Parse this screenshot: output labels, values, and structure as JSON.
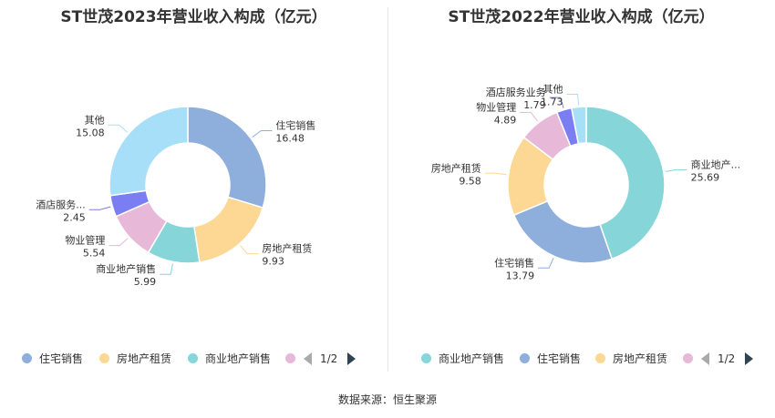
{
  "chart_data": [
    {
      "type": "pie",
      "title": "ST世茂2023年营业收入构成（亿元）",
      "slices": [
        {
          "name": "住宅销售",
          "label": "住宅销售",
          "value": 16.48,
          "color": "#8eaedb"
        },
        {
          "name": "房地产租赁",
          "label": "房地产租赁",
          "value": 9.93,
          "color": "#fdd794"
        },
        {
          "name": "商业地产销售",
          "label": "商业地产销售",
          "value": 5.99,
          "color": "#86d6d9"
        },
        {
          "name": "物业管理",
          "label": "物业管理",
          "value": 5.54,
          "color": "#e8b8d8"
        },
        {
          "name": "酒店服务业务",
          "label": "酒店服务...",
          "value": 2.45,
          "color": "#7b7ef2"
        },
        {
          "name": "其他",
          "label": "其他",
          "value": 15.08,
          "color": "#a7dff9"
        }
      ],
      "legend": {
        "items": [
          "住宅销售",
          "房地产租赁",
          "商业地产销售"
        ],
        "page": "1/2",
        "placement": "bottom"
      }
    },
    {
      "type": "pie",
      "title": "ST世茂2022年营业收入构成（亿元）",
      "slices": [
        {
          "name": "商业地产销售",
          "label": "商业地产...",
          "value": 25.69,
          "color": "#86d6d9"
        },
        {
          "name": "住宅销售",
          "label": "住宅销售",
          "value": 13.79,
          "color": "#8eaedb"
        },
        {
          "name": "房地产租赁",
          "label": "房地产租赁",
          "value": 9.58,
          "color": "#fdd794"
        },
        {
          "name": "物业管理",
          "label": "物业管理",
          "value": 4.89,
          "color": "#e8b8d8"
        },
        {
          "name": "酒店服务业务",
          "label": "酒店服务业务",
          "value": 1.79,
          "color": "#7b7ef2"
        },
        {
          "name": "其他",
          "label": "其他",
          "value": 1.73,
          "color": "#a7dff9"
        }
      ],
      "legend": {
        "items": [
          "商业地产销售",
          "住宅销售",
          "房地产租赁"
        ],
        "page": "1/2",
        "placement": "bottom"
      }
    }
  ],
  "footer": {
    "source": "数据来源：恒生聚源"
  }
}
